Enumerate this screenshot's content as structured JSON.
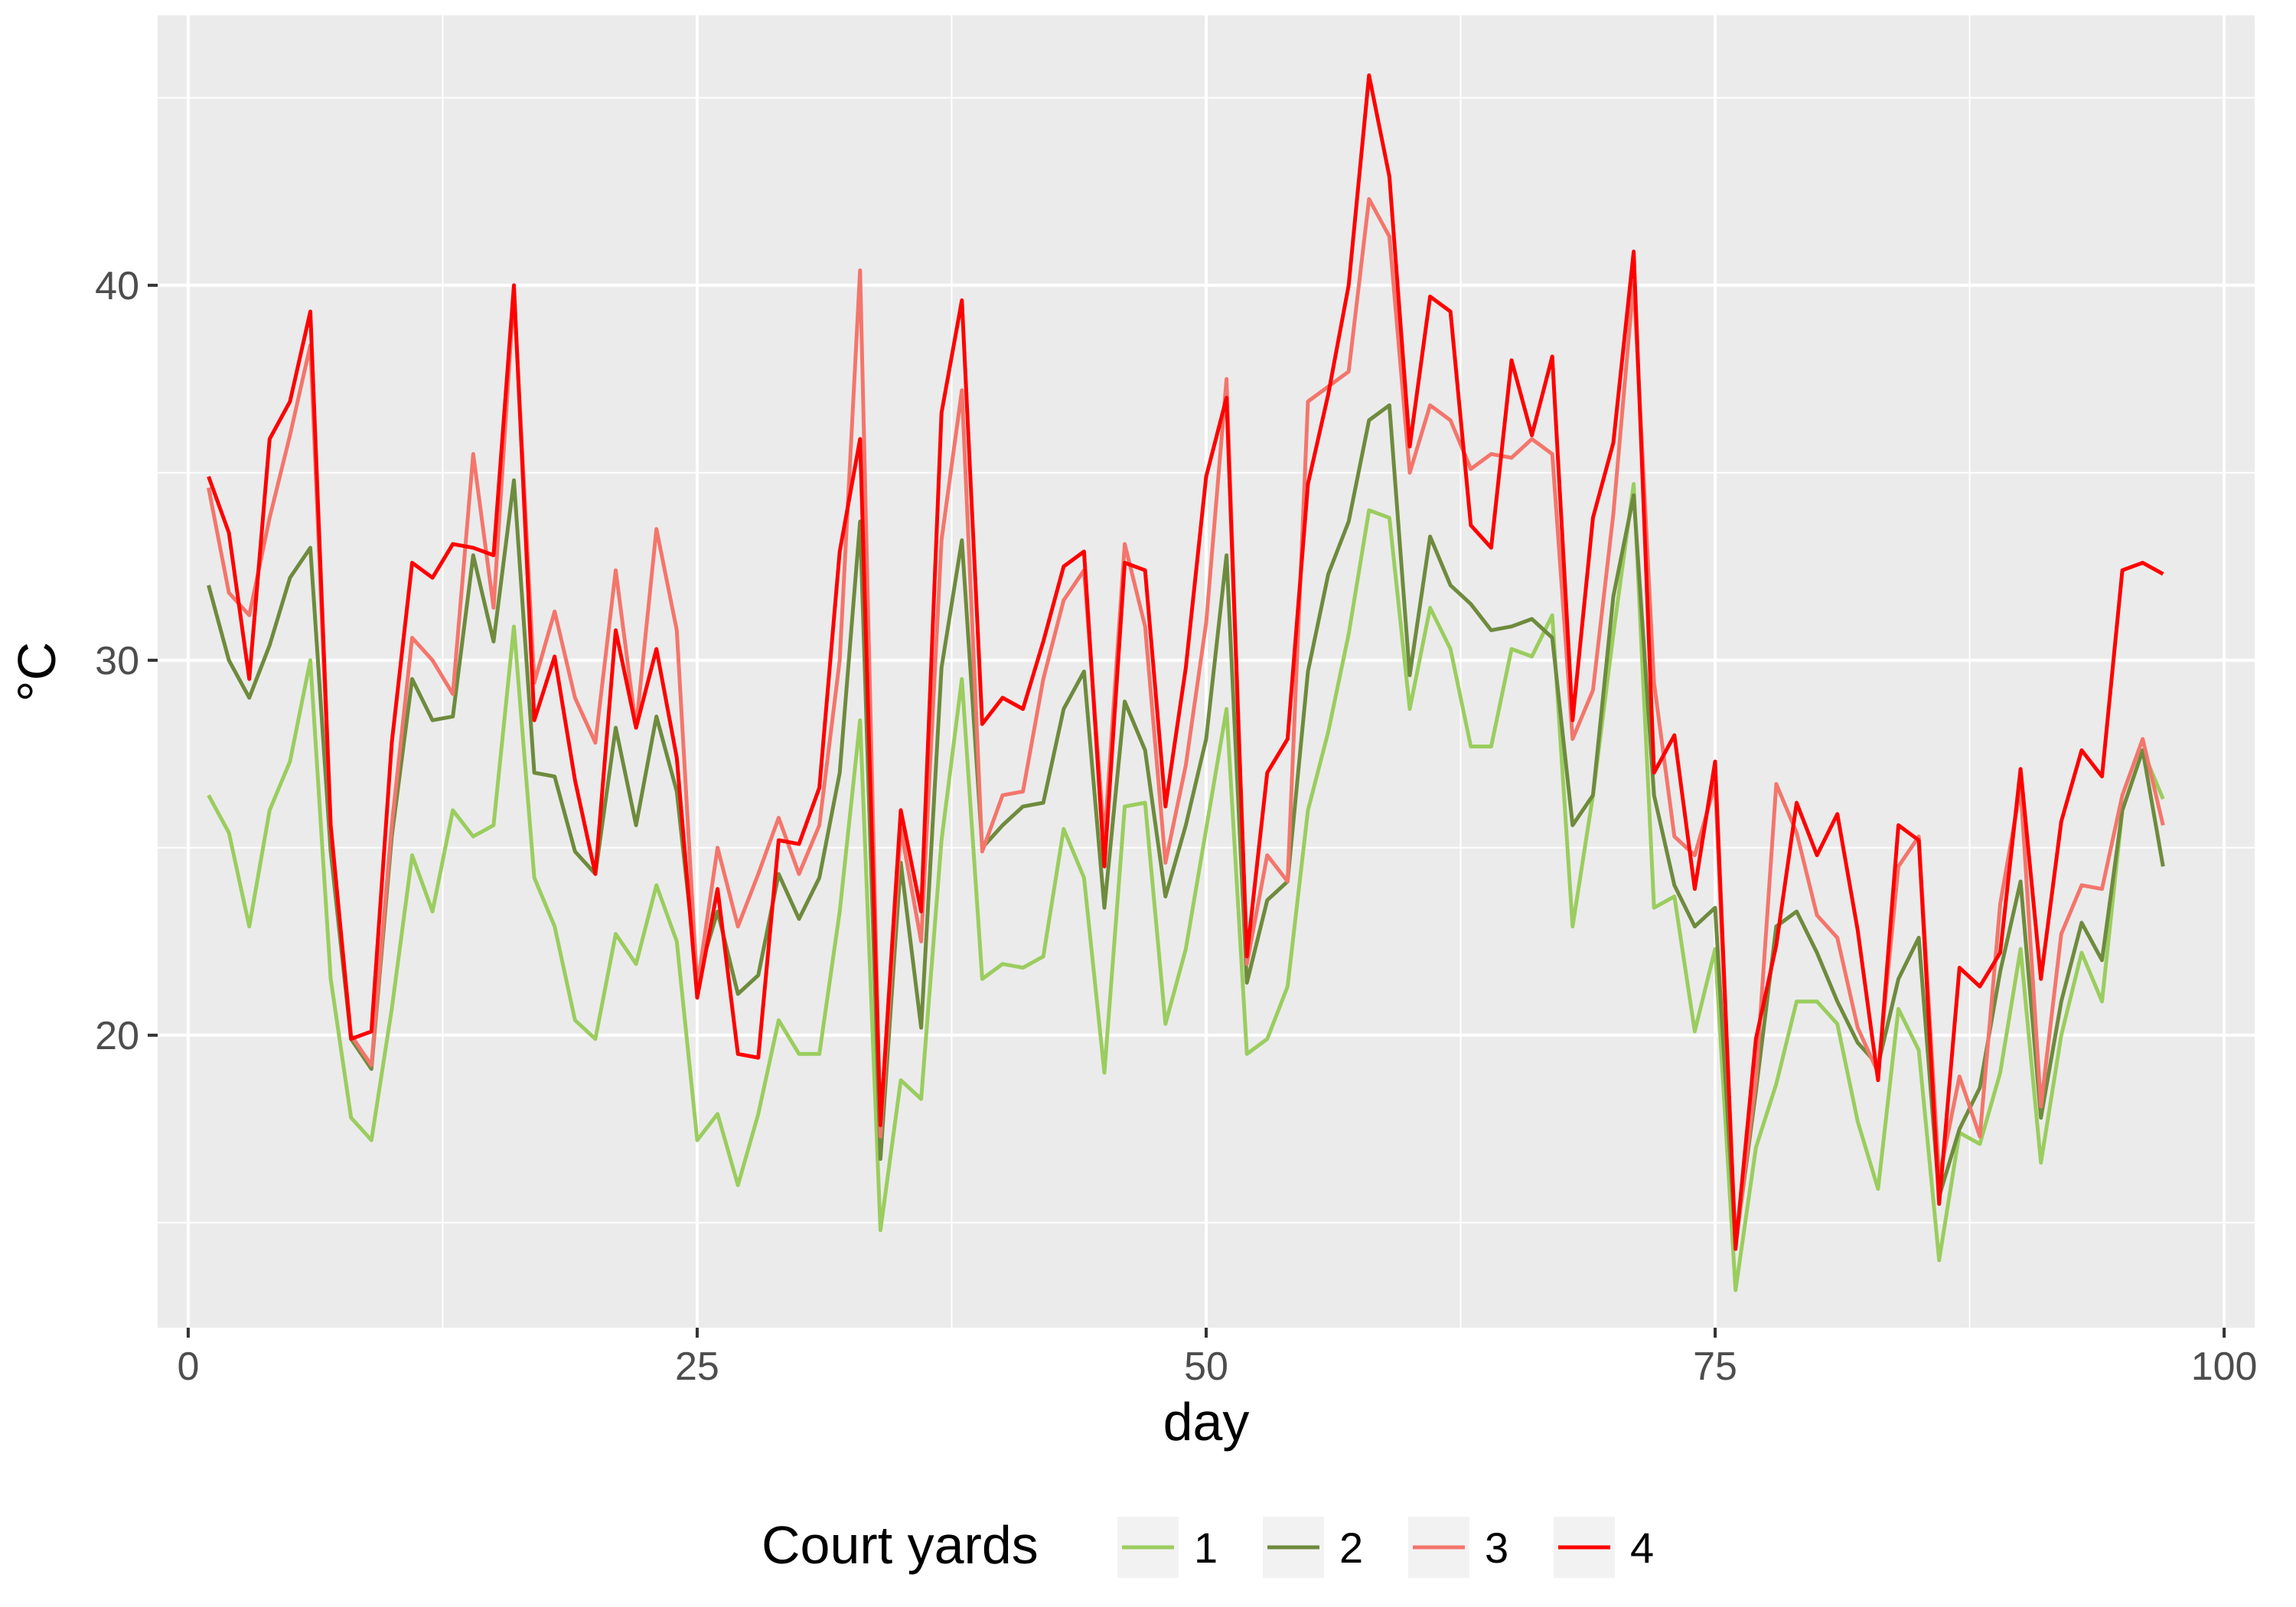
{
  "chart_data": {
    "type": "line",
    "title": "",
    "xlabel": "day",
    "ylabel": "°C",
    "xlim": [
      -1.5,
      101.5
    ],
    "ylim": [
      12.2,
      47.2
    ],
    "x_ticks": [
      0,
      25,
      50,
      75,
      100
    ],
    "x_tick_labels": [
      "0",
      "25",
      "50",
      "75",
      "100"
    ],
    "y_ticks": [
      20,
      30,
      40
    ],
    "y_tick_labels": [
      "20",
      "30",
      "40"
    ],
    "y_minor_ticks": [
      15,
      25,
      35,
      45
    ],
    "grid": true,
    "legend": {
      "title": "Court yards",
      "position": "bottom"
    },
    "x": [
      1,
      2,
      3,
      4,
      5,
      6,
      7,
      8,
      9,
      10,
      11,
      12,
      13,
      14,
      15,
      16,
      17,
      18,
      19,
      20,
      21,
      22,
      23,
      24,
      25,
      26,
      27,
      28,
      29,
      30,
      31,
      32,
      33,
      34,
      35,
      36,
      37,
      38,
      39,
      40,
      41,
      42,
      43,
      44,
      45,
      46,
      47,
      48,
      49,
      50,
      51,
      52,
      53,
      54,
      55,
      56,
      57,
      58,
      59,
      60,
      61,
      62,
      63,
      64,
      65,
      66,
      67,
      68,
      69,
      70,
      71,
      72,
      73,
      74,
      75,
      76,
      77,
      78,
      79,
      80,
      81,
      82,
      83,
      84,
      85,
      86,
      87,
      88,
      89,
      90,
      91,
      92,
      93,
      94,
      95,
      96,
      97
    ],
    "series": [
      {
        "name": "1",
        "color": "#9ACD5E",
        "values": [
          26.4,
          25.4,
          22.9,
          26.0,
          27.3,
          30.0,
          21.5,
          17.8,
          17.2,
          20.7,
          24.8,
          23.3,
          26.0,
          25.3,
          25.6,
          30.9,
          24.2,
          22.9,
          20.4,
          19.9,
          22.7,
          21.9,
          24.0,
          22.5,
          17.2,
          17.9,
          16.0,
          17.9,
          20.4,
          19.5,
          19.5,
          23.3,
          28.4,
          14.8,
          18.8,
          18.3,
          25.2,
          29.5,
          21.5,
          21.9,
          21.8,
          22.1,
          25.5,
          24.2,
          19.0,
          26.1,
          26.2,
          20.3,
          22.3,
          25.5,
          28.7,
          19.5,
          19.9,
          21.3,
          26.0,
          28.1,
          30.7,
          34.0,
          33.8,
          28.7,
          31.4,
          30.3,
          27.7,
          27.7,
          30.3,
          30.1,
          31.2,
          22.9,
          26.4,
          30.7,
          34.7,
          23.4,
          23.7,
          20.1,
          22.3,
          13.2,
          17.0,
          18.7,
          20.9,
          20.9,
          20.3,
          17.7,
          15.9,
          20.7,
          19.6,
          14.0,
          17.4,
          17.1,
          19.0,
          22.3,
          16.6,
          20.0,
          22.2,
          20.9,
          26.0,
          27.6,
          26.3
        ]
      },
      {
        "name": "2",
        "color": "#6E8B3D",
        "values": [
          32.0,
          30.0,
          29.0,
          30.4,
          32.2,
          33.0,
          24.9,
          19.9,
          19.1,
          25.3,
          29.5,
          28.4,
          28.5,
          32.8,
          30.5,
          34.8,
          27.0,
          26.9,
          24.9,
          24.3,
          28.2,
          25.6,
          28.5,
          26.5,
          21.5,
          23.3,
          21.1,
          21.6,
          24.3,
          23.1,
          24.2,
          27.0,
          33.7,
          16.7,
          24.6,
          20.2,
          29.8,
          33.2,
          25.0,
          25.6,
          26.1,
          26.2,
          28.7,
          29.7,
          23.4,
          28.9,
          27.6,
          23.7,
          25.6,
          27.9,
          32.8,
          21.4,
          23.6,
          24.1,
          29.7,
          32.3,
          33.7,
          36.4,
          36.8,
          29.6,
          33.3,
          32.0,
          31.5,
          30.8,
          30.9,
          31.1,
          30.6,
          25.6,
          26.4,
          31.7,
          34.4,
          26.4,
          24.0,
          22.9,
          23.4,
          14.4,
          18.5,
          22.9,
          23.3,
          22.2,
          20.9,
          19.8,
          19.2,
          21.5,
          22.6,
          15.7,
          17.5,
          18.6,
          21.7,
          24.1,
          17.8,
          20.9,
          23.0,
          22.0,
          26.0,
          27.6,
          24.5
        ]
      },
      {
        "name": "3",
        "color": "#F4756B",
        "values": [
          34.6,
          31.8,
          31.2,
          33.8,
          36.0,
          38.4,
          25.5,
          20.0,
          19.2,
          25.6,
          30.6,
          30.0,
          29.1,
          35.5,
          31.4,
          39.8,
          29.4,
          31.3,
          29.0,
          27.8,
          32.4,
          28.2,
          33.5,
          30.8,
          21.3,
          25.0,
          22.9,
          24.3,
          25.8,
          24.3,
          25.6,
          30.0,
          40.4,
          17.3,
          25.5,
          22.5,
          33.2,
          37.2,
          24.9,
          26.4,
          26.5,
          29.5,
          31.6,
          32.4,
          25.2,
          33.1,
          30.9,
          24.6,
          27.2,
          31.0,
          37.5,
          21.9,
          24.8,
          24.1,
          36.9,
          37.3,
          37.7,
          42.3,
          41.3,
          35.0,
          36.8,
          36.4,
          35.1,
          35.5,
          35.4,
          35.9,
          35.5,
          27.9,
          29.2,
          33.9,
          40.1,
          29.4,
          25.3,
          24.8,
          26.7,
          14.4,
          18.8,
          26.7,
          25.4,
          23.2,
          22.6,
          20.2,
          19.0,
          24.5,
          25.3,
          16.2,
          18.9,
          17.3,
          23.5,
          26.6,
          18.1,
          22.7,
          24.0,
          23.9,
          26.4,
          27.9,
          25.6
        ]
      },
      {
        "name": "4",
        "color": "#FF0000",
        "values": [
          34.9,
          33.4,
          29.5,
          35.9,
          36.9,
          39.3,
          25.6,
          19.9,
          20.1,
          27.8,
          32.6,
          32.2,
          33.1,
          33.0,
          32.8,
          40.0,
          28.4,
          30.1,
          26.8,
          24.3,
          30.8,
          28.2,
          30.3,
          27.4,
          21.0,
          23.9,
          19.5,
          19.4,
          25.2,
          25.1,
          26.6,
          32.9,
          35.9,
          17.6,
          26.0,
          23.3,
          36.6,
          39.6,
          28.3,
          29.0,
          28.7,
          30.5,
          32.5,
          32.9,
          24.5,
          32.6,
          32.4,
          26.1,
          29.8,
          34.9,
          37.0,
          22.1,
          27.0,
          27.9,
          34.7,
          37.1,
          40.0,
          45.6,
          42.9,
          35.7,
          39.7,
          39.3,
          33.6,
          33.0,
          38.0,
          36.0,
          38.1,
          28.4,
          33.8,
          35.8,
          40.9,
          27.0,
          28.0,
          23.9,
          27.3,
          14.3,
          19.9,
          22.4,
          26.2,
          24.8,
          25.9,
          22.8,
          18.8,
          25.6,
          25.2,
          15.5,
          21.8,
          21.3,
          22.2,
          27.1,
          21.5,
          25.7,
          27.6,
          26.9,
          32.4,
          32.6,
          32.3
        ]
      }
    ]
  }
}
